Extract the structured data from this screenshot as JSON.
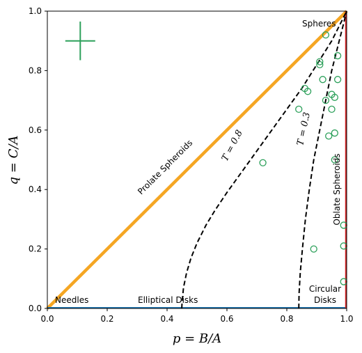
{
  "chart_data": {
    "type": "scatter",
    "title": "",
    "xlabel": "p = B/A",
    "ylabel": "q = C/A",
    "xlim": [
      0,
      1
    ],
    "ylim": [
      0,
      1
    ],
    "xticks": [
      "0.0",
      "0.2",
      "0.4",
      "0.6",
      "0.8",
      "1.0"
    ],
    "yticks": [
      "0.0",
      "0.2",
      "0.4",
      "0.6",
      "0.8",
      "1.0"
    ],
    "grid": false,
    "colors": {
      "prolate": "#f5a623",
      "oblate": "#d62728",
      "disk_axis": "#1f77b4",
      "points": "#2ca05a",
      "contour": "#000000"
    },
    "error_cross": {
      "x": 0.11,
      "y": 0.9,
      "xerr": 0.05,
      "yerr": 0.065
    },
    "points": [
      {
        "x": 0.93,
        "y": 0.92
      },
      {
        "x": 0.97,
        "y": 0.85
      },
      {
        "x": 0.91,
        "y": 0.82
      },
      {
        "x": 0.91,
        "y": 0.83
      },
      {
        "x": 0.97,
        "y": 0.77
      },
      {
        "x": 0.92,
        "y": 0.77
      },
      {
        "x": 0.87,
        "y": 0.73
      },
      {
        "x": 0.86,
        "y": 0.74
      },
      {
        "x": 0.95,
        "y": 0.72
      },
      {
        "x": 0.96,
        "y": 0.71
      },
      {
        "x": 0.93,
        "y": 0.7
      },
      {
        "x": 0.84,
        "y": 0.67
      },
      {
        "x": 0.95,
        "y": 0.67
      },
      {
        "x": 0.96,
        "y": 0.59
      },
      {
        "x": 0.94,
        "y": 0.58
      },
      {
        "x": 0.72,
        "y": 0.49
      },
      {
        "x": 0.96,
        "y": 0.5
      },
      {
        "x": 0.99,
        "y": 0.28
      },
      {
        "x": 0.99,
        "y": 0.21
      },
      {
        "x": 0.89,
        "y": 0.2
      },
      {
        "x": 0.99,
        "y": 0.09
      }
    ],
    "contours": [
      {
        "label": "T = 0.8",
        "x": [
          0.449,
          0.45,
          0.455,
          0.465,
          0.48,
          0.5,
          0.53,
          0.56,
          0.6,
          0.65,
          0.7,
          0.75,
          0.8,
          0.85,
          0.9,
          0.95,
          1.0
        ],
        "y": [
          0.0,
          0.02,
          0.07,
          0.12,
          0.17,
          0.22,
          0.28,
          0.33,
          0.39,
          0.46,
          0.53,
          0.6,
          0.67,
          0.74,
          0.82,
          0.9,
          1.0
        ]
      },
      {
        "label": "T = 0.3",
        "x": [
          0.84,
          0.841,
          0.845,
          0.852,
          0.862,
          0.875,
          0.89,
          0.91,
          0.93,
          0.95,
          0.97,
          0.985,
          1.0
        ],
        "y": [
          0.0,
          0.05,
          0.12,
          0.2,
          0.3,
          0.4,
          0.5,
          0.6,
          0.7,
          0.8,
          0.88,
          0.94,
          1.0
        ]
      }
    ],
    "annotations": {
      "spheres": "Spheres",
      "prolate": "Prolate Spheroids",
      "oblate": "Oblate Spheroids",
      "needles": "Needles",
      "elliptical": "Elliptical Disks",
      "circular_1": "Circular",
      "circular_2": "Disks",
      "t08": "T = 0.8",
      "t03": "T = 0.3"
    }
  }
}
